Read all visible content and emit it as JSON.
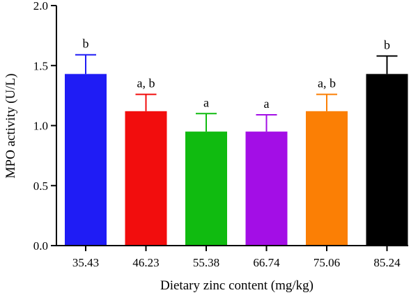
{
  "chart_data": {
    "type": "bar",
    "xlabel": "Dietary zinc content (mg/kg)",
    "ylabel": "MPO activity (U/L)",
    "ylim": [
      0,
      2.0
    ],
    "yticks": [
      "0.0",
      "0.5",
      "1.0",
      "1.5",
      "2.0"
    ],
    "ytick_values": [
      0,
      0.5,
      1.0,
      1.5,
      2.0
    ],
    "categories": [
      "35.43",
      "46.23",
      "55.38",
      "66.74",
      "75.06",
      "85.24"
    ],
    "values": [
      1.43,
      1.12,
      0.95,
      0.95,
      1.12,
      1.43
    ],
    "errors": [
      0.16,
      0.14,
      0.15,
      0.14,
      0.14,
      0.15
    ],
    "significance": [
      "b",
      "a, b",
      "a",
      "a",
      "a, b",
      "b"
    ],
    "colors": [
      "#1f1cf5",
      "#f20d0d",
      "#10bb10",
      "#a30ee6",
      "#fb7f05",
      "#000000"
    ],
    "grid": false,
    "legend": "none"
  }
}
